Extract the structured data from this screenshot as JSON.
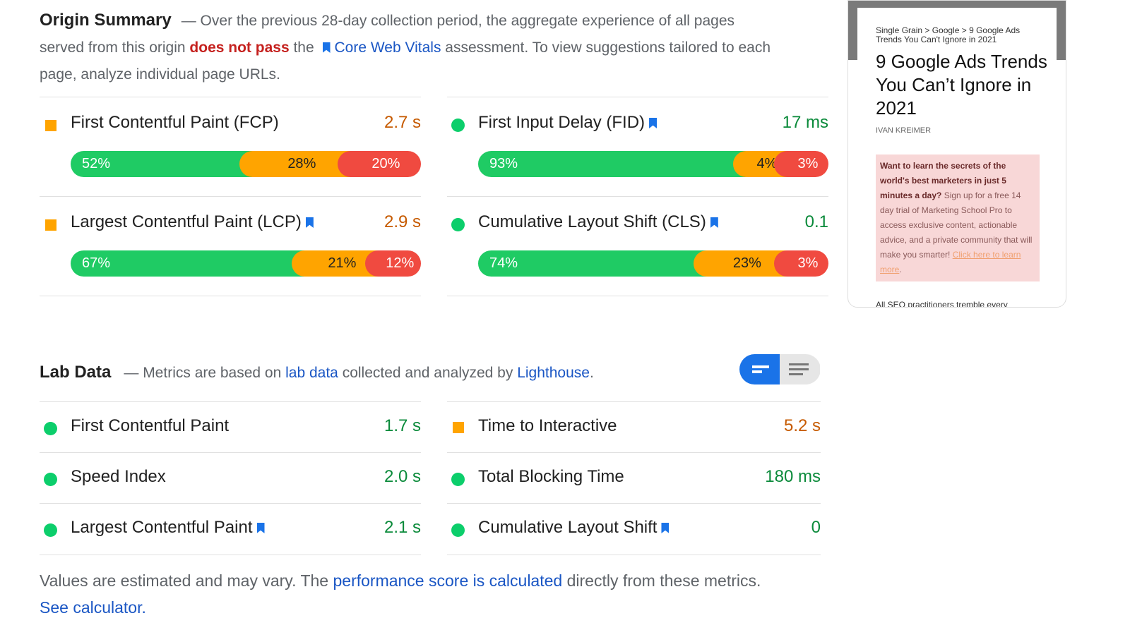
{
  "origin": {
    "title": "Origin Summary",
    "text1": "— Over the previous 28-day collection period, the aggregate experience of all pages served from this origin ",
    "fail": "does not pass",
    "text2": " the ",
    "cwv_link": "Core Web Vitals",
    "text3": " assessment. To view suggestions tailored to each page, analyze individual page URLs.",
    "metrics": [
      {
        "label": "First Contentful Paint (FCP)",
        "value": "2.7 s",
        "status": "average",
        "bookmark": false,
        "dist": [
          52,
          28,
          20
        ]
      },
      {
        "label": "First Input Delay (FID)",
        "value": "17 ms",
        "status": "good",
        "bookmark": true,
        "dist": [
          93,
          4,
          3
        ]
      },
      {
        "label": "Largest Contentful Paint (LCP)",
        "value": "2.9 s",
        "status": "average",
        "bookmark": true,
        "dist": [
          67,
          21,
          12
        ]
      },
      {
        "label": "Cumulative Layout Shift (CLS)",
        "value": "0.1",
        "status": "good",
        "bookmark": true,
        "dist": [
          74,
          23,
          3
        ]
      }
    ]
  },
  "lab": {
    "title": "Lab Data",
    "text1": "— Metrics are based on ",
    "link1": "lab data",
    "text2": " collected and analyzed by ",
    "link2": "Lighthouse",
    "text3": ".",
    "metrics": [
      {
        "label": "First Contentful Paint",
        "value": "1.7 s",
        "status": "good",
        "bookmark": false
      },
      {
        "label": "Time to Interactive",
        "value": "5.2 s",
        "status": "average",
        "bookmark": false
      },
      {
        "label": "Speed Index",
        "value": "2.0 s",
        "status": "good",
        "bookmark": false
      },
      {
        "label": "Total Blocking Time",
        "value": "180 ms",
        "status": "good",
        "bookmark": false
      },
      {
        "label": "Largest Contentful Paint",
        "value": "2.1 s",
        "status": "good",
        "bookmark": true
      },
      {
        "label": "Cumulative Layout Shift",
        "value": "0",
        "status": "good",
        "bookmark": true
      }
    ]
  },
  "footer": {
    "text1": "Values are estimated and may vary. The ",
    "link1": "performance score is calculated",
    "text2": " directly from these metrics. ",
    "link2": "See calculator."
  },
  "screenshot": {
    "breadcrumb": "Single Grain > Google > 9 Google Ads Trends You Can't Ignore in 2021",
    "title": "9 Google Ads Trends You Can’t Ignore in 2021",
    "author": "IVAN KREIMER",
    "promo_bold": "Want to learn the secrets of the world's best marketers in just 5 minutes a day?",
    "promo_text": " Sign up for a free 14 day trial of Marketing School Pro to access exclusive content, actionable advice, and a private community that will make you smarter! ",
    "promo_link": "Click here to learn more",
    "promo_end": ".",
    "body": "All SEO practitioners tremble every"
  },
  "colors": {
    "good": "#0cce6b",
    "average": "#ffa400",
    "poor": "#ff4e42",
    "accent": "#1a73e8"
  }
}
